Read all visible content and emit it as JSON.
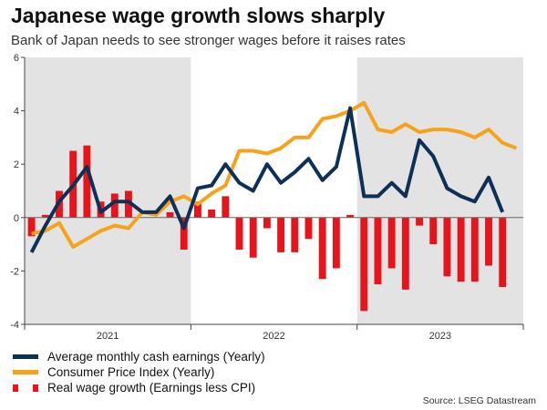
{
  "header": {
    "title": "Japanese wage growth slows sharply",
    "subtitle": "Bank of Japan needs to see stronger wages before it raises rates"
  },
  "source": "Source: LSEG Datastream",
  "colors": {
    "earnings": "#0d3057",
    "cpi": "#f7a21b",
    "real_wage": "#e8141b",
    "shade": "#e3e3e3",
    "zero": "#666666"
  },
  "chart_data": {
    "type": "line+bar",
    "title": "Japanese wage growth slows sharply",
    "subtitle": "Bank of Japan needs to see stronger wages before it raises rates",
    "xlabel": "",
    "ylabel": "",
    "ylim": [
      -4,
      6
    ],
    "yticks": [
      "-4",
      "-2",
      "0",
      "2",
      "4",
      "6"
    ],
    "yticks_values": [
      -4,
      -2,
      0,
      2,
      4,
      6
    ],
    "year_labels": [
      "2021",
      "2022",
      "2023"
    ],
    "shaded_years": [
      "2021",
      "2023"
    ],
    "months": [
      "Jan 2021",
      "Feb 2021",
      "Mar 2021",
      "Apr 2021",
      "May 2021",
      "Jun 2021",
      "Jul 2021",
      "Aug 2021",
      "Sep 2021",
      "Oct 2021",
      "Nov 2021",
      "Dec 2021",
      "Jan 2022",
      "Feb 2022",
      "Mar 2022",
      "Apr 2022",
      "May 2022",
      "Jun 2022",
      "Jul 2022",
      "Aug 2022",
      "Sep 2022",
      "Oct 2022",
      "Nov 2022",
      "Dec 2022",
      "Jan 2023",
      "Feb 2023",
      "Mar 2023",
      "Apr 2023",
      "May 2023",
      "Jun 2023",
      "Jul 2023",
      "Aug 2023",
      "Sep 2023",
      "Oct 2023",
      "Nov 2023",
      "Dec 2023"
    ],
    "series": [
      {
        "name": "Average monthly cash earnings (Yearly)",
        "kind": "line",
        "values": [
          -1.3,
          -0.3,
          0.6,
          1.2,
          1.9,
          0.2,
          0.6,
          0.6,
          0.2,
          0.2,
          0.8,
          -0.4,
          1.1,
          1.2,
          2.0,
          1.3,
          1.0,
          2.0,
          1.3,
          1.7,
          2.2,
          1.4,
          1.9,
          4.1,
          0.8,
          0.8,
          1.3,
          0.8,
          2.9,
          2.3,
          1.1,
          0.8,
          0.6,
          1.5,
          0.2,
          null
        ]
      },
      {
        "name": "Consumer Price Index (Yearly)",
        "kind": "line",
        "values": [
          -0.6,
          -0.5,
          -0.2,
          -1.1,
          -0.8,
          -0.5,
          -0.3,
          -0.4,
          0.2,
          0.1,
          0.6,
          0.8,
          0.5,
          0.9,
          1.2,
          2.5,
          2.5,
          2.4,
          2.6,
          3.0,
          3.0,
          3.7,
          3.8,
          4.0,
          4.3,
          3.3,
          3.2,
          3.5,
          3.2,
          3.3,
          3.3,
          3.2,
          3.0,
          3.3,
          2.8,
          2.6
        ]
      },
      {
        "name": "Real wage growth (Earnings less CPI)",
        "kind": "bar",
        "values": [
          -0.7,
          0.1,
          1.0,
          2.5,
          2.7,
          0.6,
          0.9,
          1.0,
          0.0,
          0.0,
          0.2,
          -1.2,
          0.6,
          0.3,
          0.8,
          -1.2,
          -1.5,
          -0.4,
          -1.3,
          -1.3,
          -0.8,
          -2.3,
          -1.9,
          0.1,
          -3.5,
          -2.5,
          -1.9,
          -2.7,
          -0.3,
          -1.0,
          -2.2,
          -2.4,
          -2.4,
          -1.8,
          -2.6,
          null
        ]
      }
    ]
  }
}
